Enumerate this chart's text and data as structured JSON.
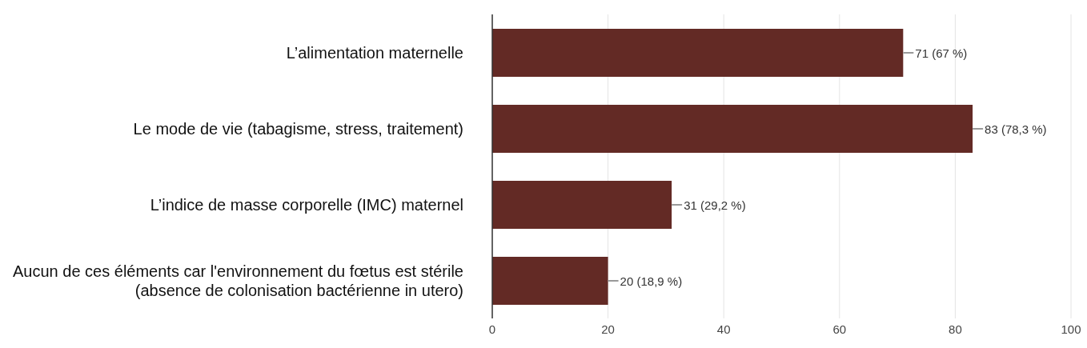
{
  "chart_data": {
    "type": "bar",
    "orientation": "horizontal",
    "categories": [
      "L’alimentation maternelle",
      "Le mode de vie (tabagisme, stress, traitement)",
      "L’indice de masse corporelle (IMC) maternel",
      "Aucun de ces éléments car l'environnement du fœtus est stérile (absence de colonisation bactérienne in utero)"
    ],
    "values": [
      71,
      83,
      31,
      20
    ],
    "value_labels": [
      "71 (67 %)",
      "83 (78,3 %)",
      "31 (29,2 %)",
      "20 (18,9 %)"
    ],
    "color": "#632a25",
    "xlim": [
      0,
      100
    ],
    "xticks": [
      0,
      20,
      40,
      60,
      80,
      100
    ],
    "grid": "x",
    "legend": false
  }
}
